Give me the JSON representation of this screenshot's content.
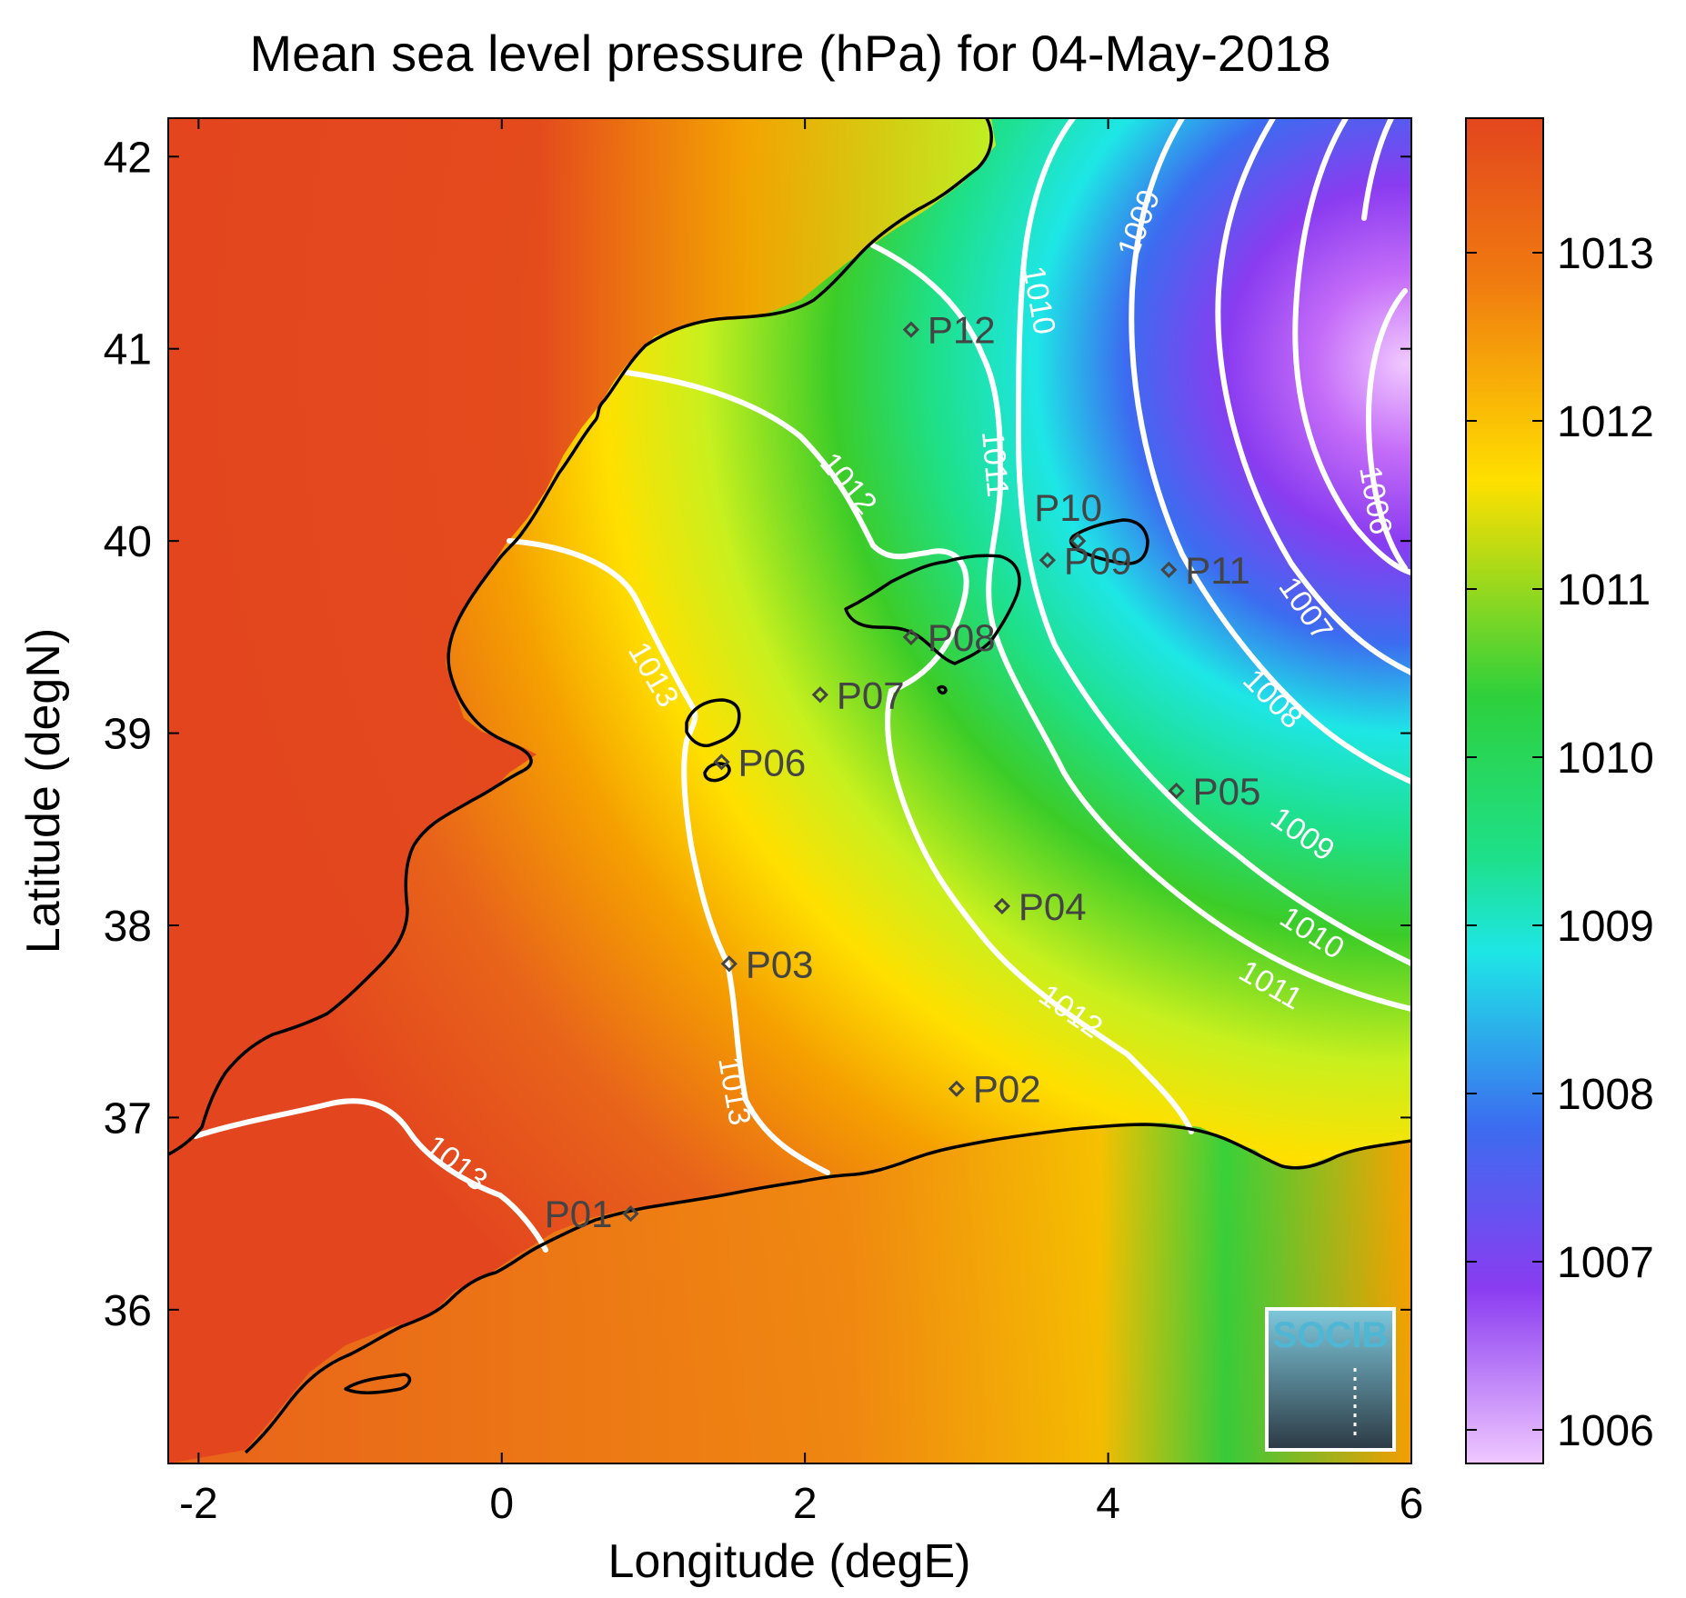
{
  "title": "Mean sea level pressure (hPa) for 04-May-2018",
  "xlabel": "Longitude (degE)",
  "ylabel": "Latitude (degN)",
  "x_ticks": [
    "-2",
    "0",
    "2",
    "4",
    "6"
  ],
  "y_ticks": [
    "42",
    "41",
    "40",
    "39",
    "38",
    "37",
    "36"
  ],
  "colorbar_ticks": [
    "1013",
    "1012",
    "1011",
    "1010",
    "1009",
    "1008",
    "1007",
    "1006"
  ],
  "contour_labels": [
    "1013",
    "1013",
    "1013",
    "1012",
    "1012",
    "1011",
    "1011",
    "1010",
    "1010",
    "1009",
    "1009",
    "1008",
    "1007",
    "1006"
  ],
  "stations": [
    {
      "name": "P01",
      "lon": 0.85,
      "lat": 36.5
    },
    {
      "name": "P02",
      "lon": 3.0,
      "lat": 37.15
    },
    {
      "name": "P03",
      "lon": 1.5,
      "lat": 37.8
    },
    {
      "name": "P04",
      "lon": 3.3,
      "lat": 38.1
    },
    {
      "name": "P05",
      "lon": 4.45,
      "lat": 38.7
    },
    {
      "name": "P06",
      "lon": 1.45,
      "lat": 38.85
    },
    {
      "name": "P07",
      "lon": 2.1,
      "lat": 39.2
    },
    {
      "name": "P08",
      "lon": 2.7,
      "lat": 39.5
    },
    {
      "name": "P09",
      "lon": 3.6,
      "lat": 39.9
    },
    {
      "name": "P10",
      "lon": 3.8,
      "lat": 40.0
    },
    {
      "name": "P11",
      "lon": 4.4,
      "lat": 39.85
    },
    {
      "name": "P12",
      "lon": 2.7,
      "lat": 41.1
    }
  ],
  "logo_text": "SOCIB",
  "colors": {
    "high": "#e3461e",
    "mid": "#ffe600",
    "green": "#1ecc3a",
    "cyan": "#1ee6e6",
    "low": "#9a3cf0",
    "lowest": "#f0c8ff"
  },
  "chart_data": {
    "type": "heatmap",
    "title": "Mean sea level pressure (hPa) for 04-May-2018",
    "xlabel": "Longitude (degE)",
    "ylabel": "Latitude (degN)",
    "xlim": [
      -2.2,
      6
    ],
    "ylim": [
      35.2,
      42.2
    ],
    "colorbar_range": [
      1005.8,
      1013.8
    ],
    "colorbar_label_values": [
      1006,
      1007,
      1008,
      1009,
      1010,
      1011,
      1012,
      1013
    ],
    "contour_levels": [
      1006,
      1007,
      1008,
      1009,
      1010,
      1011,
      1012,
      1013
    ]
  }
}
